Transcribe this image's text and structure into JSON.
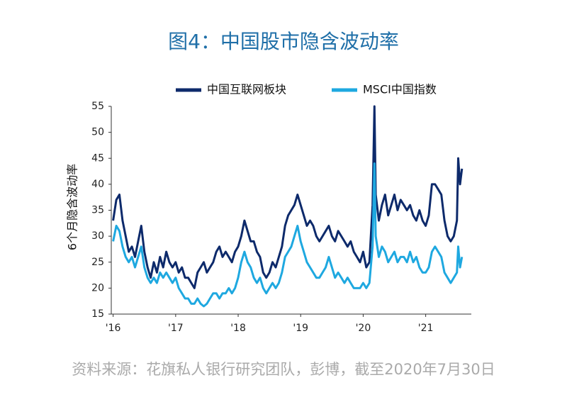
{
  "chart_data": {
    "type": "line",
    "title": "图4：中国股市隐含波动率",
    "y_label": "6个月隐含波动率",
    "source": "资料来源：花旗私人银行研究团队，彭博，截至2020年7月30日",
    "legend": "top",
    "grid": false,
    "xlim": [
      2015.97,
      2021.73
    ],
    "xticks": [
      {
        "value": 2016,
        "label": "'16"
      },
      {
        "value": 2017,
        "label": "'17"
      },
      {
        "value": 2018,
        "label": "'18"
      },
      {
        "value": 2019,
        "label": "'19"
      },
      {
        "value": 2020,
        "label": "'20"
      },
      {
        "value": 2021,
        "label": "'21"
      }
    ],
    "ylim": [
      15,
      55
    ],
    "yticks": [
      15,
      20,
      25,
      30,
      35,
      40,
      45,
      50,
      55
    ],
    "x": [
      2016.0,
      2016.05,
      2016.1,
      2016.15,
      2016.2,
      2016.25,
      2016.3,
      2016.35,
      2016.4,
      2016.45,
      2016.5,
      2016.55,
      2016.6,
      2016.65,
      2016.7,
      2016.75,
      2016.8,
      2016.85,
      2016.9,
      2016.95,
      2017.0,
      2017.05,
      2017.1,
      2017.15,
      2017.2,
      2017.25,
      2017.3,
      2017.35,
      2017.4,
      2017.45,
      2017.5,
      2017.55,
      2017.6,
      2017.65,
      2017.7,
      2017.75,
      2017.8,
      2017.85,
      2017.9,
      2017.95,
      2018.0,
      2018.05,
      2018.1,
      2018.15,
      2018.2,
      2018.25,
      2018.3,
      2018.35,
      2018.4,
      2018.45,
      2018.5,
      2018.55,
      2018.6,
      2018.65,
      2018.7,
      2018.75,
      2018.8,
      2018.85,
      2018.9,
      2018.95,
      2019.0,
      2019.05,
      2019.1,
      2019.15,
      2019.2,
      2019.25,
      2019.3,
      2019.35,
      2019.4,
      2019.45,
      2019.5,
      2019.55,
      2019.6,
      2019.65,
      2019.7,
      2019.75,
      2019.8,
      2019.85,
      2019.9,
      2019.95,
      2020.0,
      2020.05,
      2020.1,
      2020.15,
      2020.18,
      2020.2,
      2020.25,
      2020.3,
      2020.35,
      2020.4,
      2020.45,
      2020.5,
      2020.55,
      2020.6,
      2020.65,
      2020.7,
      2020.75,
      2020.8,
      2020.85,
      2020.9,
      2020.95,
      2021.0,
      2021.05,
      2021.1,
      2021.15,
      2021.2,
      2021.25,
      2021.3,
      2021.35,
      2021.4,
      2021.45,
      2021.5,
      2021.52,
      2021.55,
      2021.58
    ],
    "series": [
      {
        "name": "中国互联网板块",
        "color": "#0d2a6b",
        "values": [
          33,
          37,
          38,
          33,
          30,
          27,
          28,
          26,
          29,
          32,
          27,
          24,
          22,
          25,
          23,
          26,
          24,
          27,
          25,
          24,
          25,
          23,
          24,
          22,
          22,
          21,
          20,
          23,
          24,
          25,
          23,
          24,
          25,
          27,
          28,
          26,
          27,
          26,
          25,
          27,
          28,
          30,
          33,
          31,
          29,
          29,
          27,
          26,
          23,
          22,
          23,
          25,
          24,
          26,
          28,
          32,
          34,
          35,
          36,
          38,
          36,
          34,
          32,
          33,
          32,
          30,
          29,
          30,
          31,
          32,
          30,
          29,
          31,
          30,
          29,
          28,
          29,
          27,
          26,
          25,
          27,
          24,
          25,
          36,
          55,
          38,
          33,
          36,
          38,
          34,
          36,
          38,
          35,
          37,
          36,
          35,
          36,
          34,
          33,
          35,
          33,
          32,
          34,
          40,
          40,
          39,
          38,
          33,
          30,
          29,
          30,
          33,
          45,
          40,
          43
        ]
      },
      {
        "name": "MSCI中国指数",
        "color": "#1ea8e0",
        "values": [
          29,
          32,
          31,
          28,
          26,
          25,
          26,
          24,
          26,
          28,
          24,
          22,
          21,
          22,
          21,
          23,
          22,
          23,
          22,
          21,
          22,
          20,
          19,
          18,
          18,
          17,
          17,
          18,
          17,
          16.5,
          17,
          18,
          19,
          19,
          18,
          19,
          19,
          20,
          19,
          20,
          22,
          25,
          27,
          25,
          24,
          22,
          21,
          22,
          20,
          19,
          20,
          21,
          20,
          21,
          23,
          26,
          27,
          28,
          30,
          32,
          29,
          27,
          25,
          24,
          23,
          22,
          22,
          23,
          24,
          26,
          24,
          22,
          23,
          22,
          21,
          22,
          21,
          20,
          20,
          20,
          21,
          20,
          21,
          28,
          44,
          30,
          26,
          28,
          27,
          25,
          26,
          27,
          25,
          26,
          26,
          25,
          27,
          25,
          26,
          24,
          23,
          23,
          24,
          27,
          28,
          27,
          26,
          23,
          22,
          21,
          22,
          23,
          28,
          24,
          26
        ]
      }
    ]
  }
}
